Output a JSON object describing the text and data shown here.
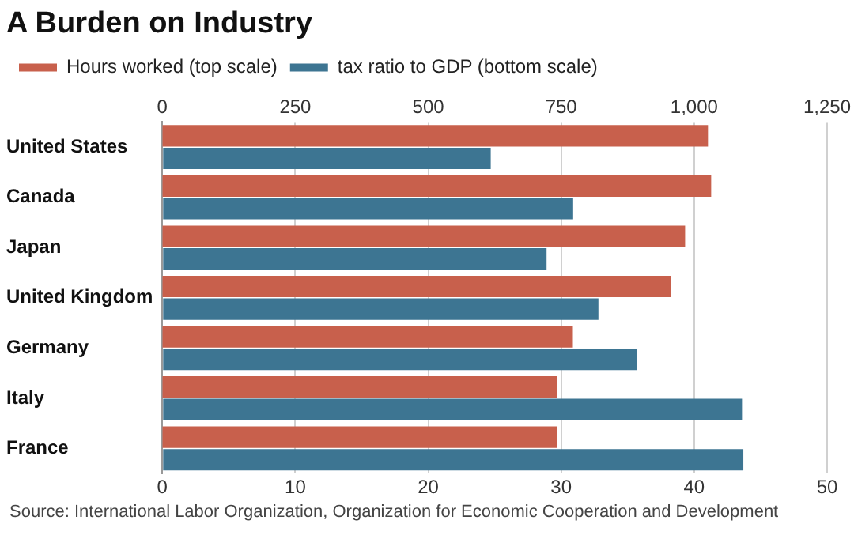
{
  "chart_data": {
    "type": "bar",
    "orientation": "horizontal",
    "title": "A Burden on Industry",
    "categories": [
      "United States",
      "Canada",
      "Japan",
      "United Kingdom",
      "Germany",
      "Italy",
      "France"
    ],
    "series": [
      {
        "name": "Hours worked (top scale)",
        "color": "#c8604c",
        "axis": "x2",
        "values": [
          1026,
          1032,
          983,
          956,
          772,
          742,
          742
        ]
      },
      {
        "name": "tax ratio to GDP (bottom scale)",
        "color": "#3d7592",
        "values": [
          24.7,
          30.9,
          28.9,
          32.8,
          35.7,
          43.6,
          43.7
        ]
      }
    ],
    "xlim": [
      0,
      50
    ],
    "xticks": [
      0,
      10,
      20,
      30,
      40,
      50
    ],
    "x2lim": [
      0,
      1250
    ],
    "x2ticks": [
      0,
      250,
      500,
      750,
      {
        "value": 1000,
        "label": "1,000"
      },
      {
        "value": 1250,
        "label": "1,250"
      }
    ],
    "grid": "x",
    "legend": "top",
    "annotations": [
      "Source: International Labor Organization, Organization for Economic Cooperation and Development"
    ]
  }
}
